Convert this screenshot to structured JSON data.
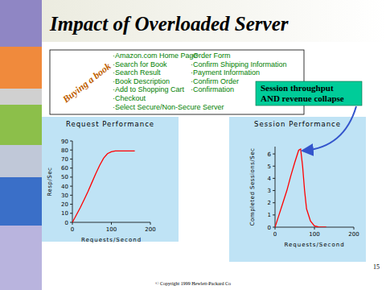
{
  "slide": {
    "title": "Impact of Overloaded Server",
    "side_label": "Buying a book",
    "steps_left": [
      "·Amazon.com Home Page",
      "·Search for Book",
      "·Search Result",
      "·Book Description",
      "·Add to Shopping Cart",
      "·Checkout",
      "·Select Secure/Non-Secure Server"
    ],
    "steps_right": [
      "·Order Form",
      "·Confirm Shipping Information",
      "·Payment Information",
      "·Confirm Order",
      "·Confirmation"
    ],
    "page_number": 15,
    "footer": "© Copyright 1999 Hewlett-Packard Co"
  },
  "chart_data": [
    {
      "type": "line",
      "title": "Request Performance",
      "x_label": "Requests/Second",
      "y_label": "Resp/Sec",
      "x": [
        0,
        10,
        20,
        30,
        40,
        50,
        60,
        70,
        80,
        90,
        100,
        110,
        120,
        140,
        160
      ],
      "values": [
        0,
        8,
        16,
        25,
        34,
        44,
        54,
        63,
        71,
        76,
        78,
        79,
        79,
        79,
        79
      ],
      "color": "#ff0000",
      "xlim": [
        0,
        200
      ],
      "xticks": [
        0,
        100,
        200
      ],
      "ylim": [
        0,
        90
      ],
      "yticks": [
        0,
        10,
        20,
        30,
        40,
        50,
        60,
        70,
        80,
        90
      ],
      "grid": false
    },
    {
      "type": "line",
      "title": "Session Performance",
      "x_label": "Requests/Second",
      "y_label": "Completed Sessions/Sec",
      "x": [
        0,
        10,
        20,
        30,
        40,
        50,
        60,
        65,
        70,
        75,
        80,
        90,
        100,
        110,
        120,
        130
      ],
      "values": [
        0,
        1,
        2,
        3,
        4.2,
        5.3,
        6.3,
        6.4,
        5,
        3,
        1.5,
        0.5,
        0.1,
        0.02,
        0,
        0
      ],
      "color": "#ff0000",
      "xlim": [
        0,
        200
      ],
      "xticks": [
        0,
        100,
        200
      ],
      "ylim": [
        0,
        6.6
      ],
      "yticks": [
        0,
        1,
        2,
        3,
        4,
        5,
        6
      ],
      "grid": false,
      "annotation": "Session throughput AND revenue collapse"
    }
  ]
}
